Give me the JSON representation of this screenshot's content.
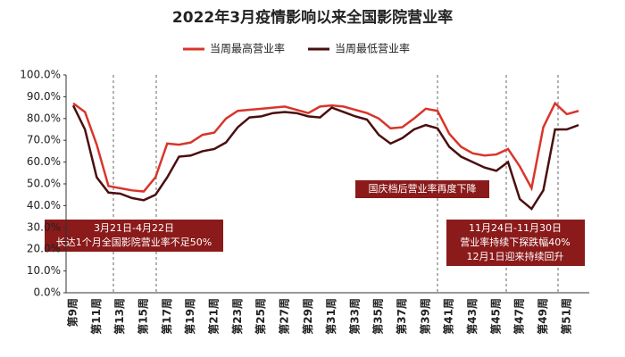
{
  "chart_data": {
    "type": "line",
    "title": "2022年3月疫情影响以来全国影院营业率",
    "categories": [
      "第9周",
      null,
      "第11周",
      null,
      "第13周",
      null,
      "第15周",
      null,
      "第17周",
      null,
      "第19周",
      null,
      "第21周",
      null,
      "第23周",
      null,
      "第25周",
      null,
      "第27周",
      null,
      "第29周",
      null,
      "第31周",
      null,
      "第33周",
      null,
      "第35周",
      null,
      "第37周",
      null,
      "第39周",
      null,
      "第41周",
      null,
      "第43周",
      null,
      "第45周",
      null,
      "第47周",
      null,
      "第49周",
      null,
      "第51周",
      null
    ],
    "series": [
      {
        "name": "当周最高营业率",
        "color": "#d9352a",
        "values": [
          87,
          83,
          68,
          49,
          48,
          47,
          46.5,
          53,
          68.5,
          68,
          69,
          72.5,
          73.5,
          80,
          83.5,
          84,
          84.5,
          85,
          85.5,
          84,
          82.5,
          85.5,
          86,
          85.5,
          84,
          82.5,
          80,
          75.5,
          76,
          80,
          84.5,
          83.5,
          73,
          67,
          64,
          63,
          63.5,
          66,
          58,
          48,
          76,
          87,
          82,
          83.5
        ]
      },
      {
        "name": "当周最低营业率",
        "color": "#4a0e0e",
        "values": [
          86,
          75,
          53,
          46,
          45.5,
          43.5,
          42.5,
          45,
          53,
          62.5,
          63,
          65,
          66,
          69,
          76,
          80.5,
          81,
          82.5,
          83,
          82.5,
          81,
          80.5,
          85,
          83,
          81,
          79.5,
          72.5,
          68.5,
          71,
          75,
          77,
          75.5,
          67,
          62.5,
          60,
          57.5,
          56,
          60,
          43,
          38.5,
          47,
          75,
          75,
          77
        ]
      }
    ],
    "ylim": [
      0,
      100
    ],
    "yticks": [
      {
        "value": 0,
        "label": "0.0%"
      },
      {
        "value": 10,
        "label": "10.0%"
      },
      {
        "value": 20,
        "label": "20.0%"
      },
      {
        "value": 30,
        "label": "30.0%"
      },
      {
        "value": 40,
        "label": "40.0%"
      },
      {
        "value": 50,
        "label": "50.0%"
      },
      {
        "value": 60,
        "label": "60.0%"
      },
      {
        "value": 70,
        "label": "70.0%"
      },
      {
        "value": 80,
        "label": "80.0%"
      },
      {
        "value": 90,
        "label": "90.0%"
      },
      {
        "value": 100,
        "label": "100.0%"
      }
    ],
    "grid": false,
    "legend": "top",
    "annotations": [
      "3月21日-4月22日",
      "长达1个月全国影院营业率不足50%",
      "国庆档后营业率再度下降",
      "11月24日-11月30日",
      "营业率持续下探跌幅40%",
      "12月1日迎来持续回升"
    ]
  }
}
